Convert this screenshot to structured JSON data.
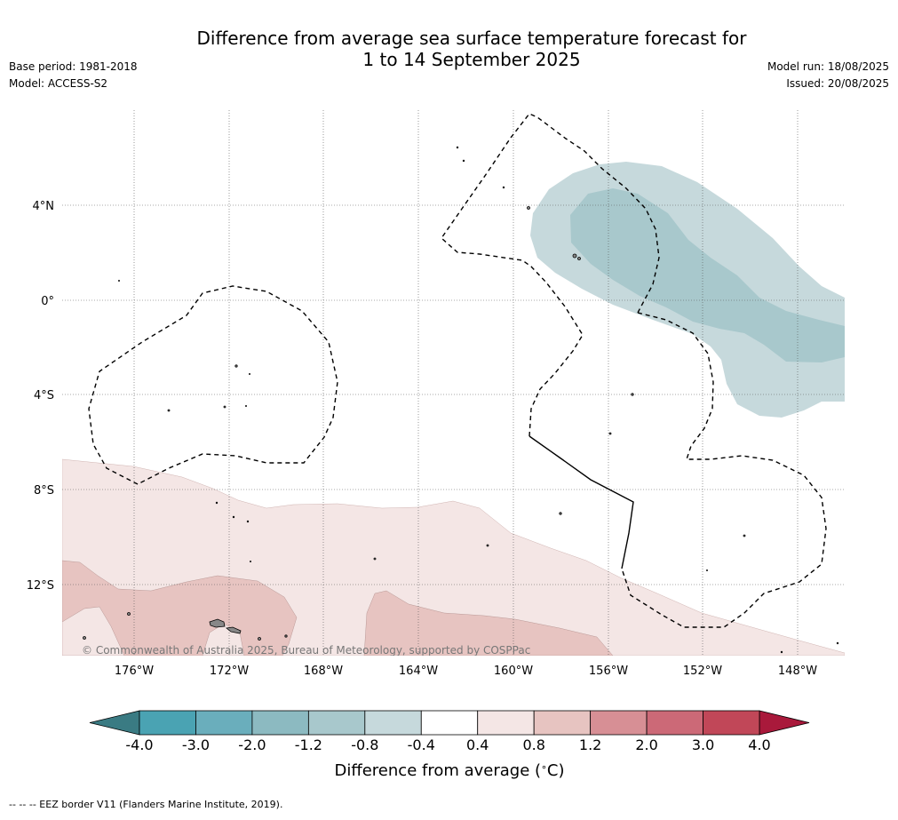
{
  "title": {
    "line1": "Difference from average sea surface temperature forecast for",
    "line2": "1 to 14 September 2025"
  },
  "meta": {
    "base_period": "Base period: 1981-2018",
    "model": "Model: ACCESS-S2",
    "model_run": "Model run: 18/08/2025",
    "issued": "Issued: 20/08/2025"
  },
  "map": {
    "lat_labels": [
      "4°N",
      "0°",
      "4°S",
      "8°S",
      "12°S"
    ],
    "lon_labels": [
      "176°W",
      "172°W",
      "168°W",
      "164°W",
      "160°W",
      "156°W",
      "152°W",
      "148°W"
    ],
    "copyright": "© Commonwealth of Australia 2025, Bureau of Meteorology, supported by COSPPac"
  },
  "colorbar": {
    "title": "Difference from average (°C)",
    "title_text": "Difference from average (",
    "title_unit": "C)",
    "tick_labels": [
      "-4.0",
      "-3.0",
      "-2.0",
      "-1.2",
      "-0.8",
      "-0.4",
      "0.4",
      "0.8",
      "1.2",
      "2.0",
      "3.0",
      "4.0"
    ],
    "colors": [
      "#4aa3b3",
      "#6aaebc",
      "#8cbac1",
      "#a8c8cc",
      "#c6d9dc",
      "#ffffff",
      "#f4e6e5",
      "#e7c4c1",
      "#d78f95",
      "#cc6977",
      "#c14758"
    ],
    "low_extend_color": "#3a7b83",
    "high_extend_color": "#a9193b"
  },
  "footer": "--  --  -- EEZ border V11 (Flanders Marine Institute, 2019)."
}
